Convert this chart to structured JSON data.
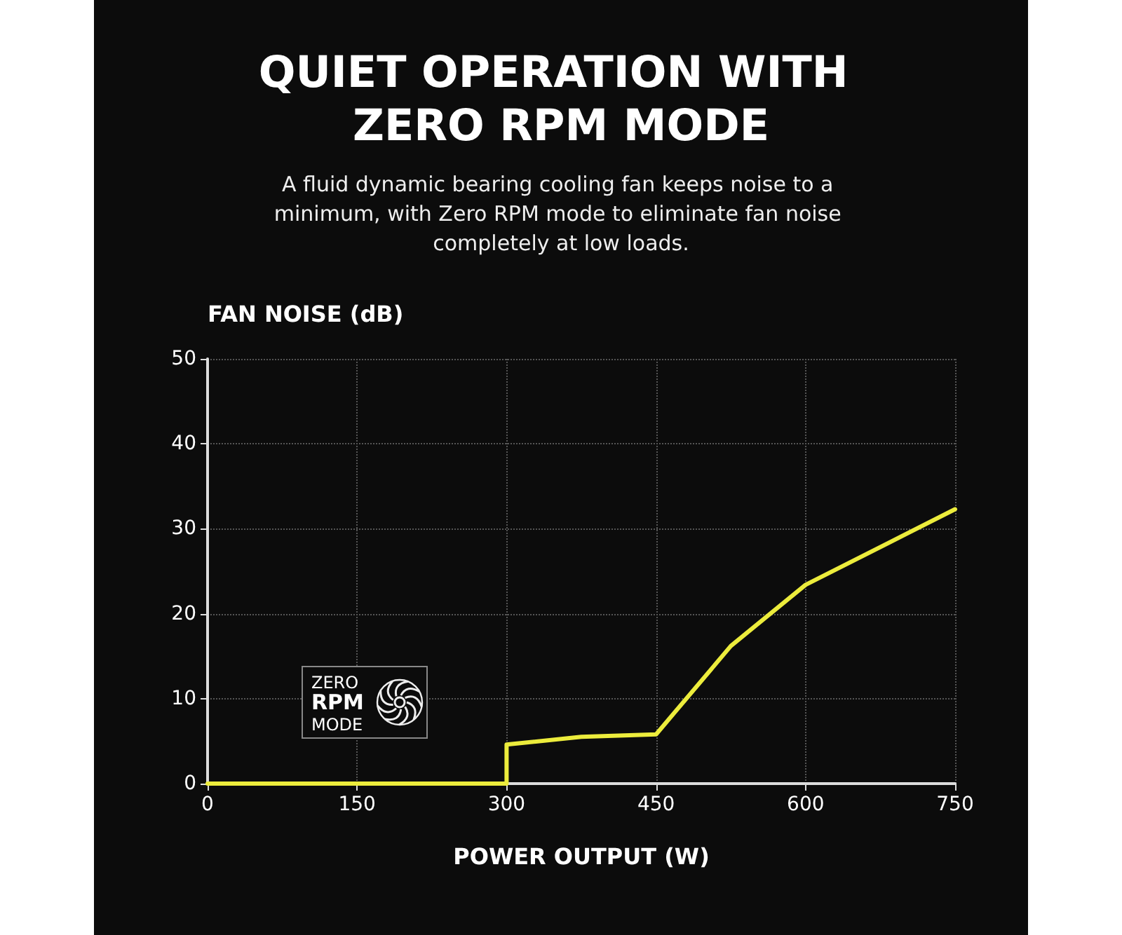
{
  "chart_data": {
    "type": "line",
    "title": "QUIET OPERATION WITH ZERO RPM MODE",
    "subtitle": "A fluid dynamic bearing cooling fan keeps noise to a minimum, with Zero RPM mode to eliminate fan noise completely at low loads.",
    "xlabel": "POWER OUTPUT (W)",
    "ylabel": "FAN NOISE (dB)",
    "annotations": [
      "ZERO RPM MODE"
    ],
    "series": [
      {
        "color": "#ecec3c",
        "x": [
          0,
          300,
          300,
          375,
          450,
          525,
          600,
          750
        ],
        "values": [
          0,
          0,
          4.6,
          5.5,
          5.8,
          16.2,
          23.4,
          32.3
        ]
      }
    ],
    "xlim": [
      0,
      750
    ],
    "xticks": [
      0,
      150,
      300,
      450,
      600,
      750
    ],
    "ylim": [
      0,
      50
    ],
    "yticks": [
      0,
      10,
      20,
      30,
      40,
      50
    ],
    "grid": true,
    "marker": "none",
    "line_style": "solid"
  }
}
